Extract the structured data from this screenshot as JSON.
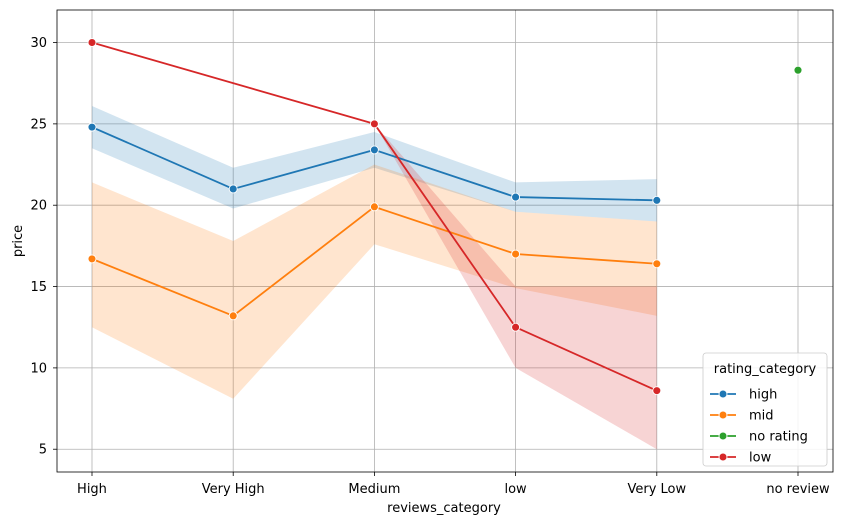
{
  "chart_data": {
    "type": "line",
    "xlabel": "reviews_category",
    "ylabel": "price",
    "categories": [
      "High",
      "Very High",
      "Medium",
      "low",
      "Very Low",
      "no review"
    ],
    "y_ticks": [
      5,
      10,
      15,
      20,
      25,
      30
    ],
    "ylim": [
      3.6,
      32
    ],
    "grid": true,
    "legend": {
      "title": "rating_category",
      "placement": "lower-right"
    },
    "series": [
      {
        "name": "high",
        "color": "#1f77b4",
        "values": [
          24.8,
          21.0,
          23.4,
          20.5,
          20.3,
          null
        ],
        "ci_low": [
          23.5,
          19.8,
          22.3,
          19.6,
          19.0,
          null
        ],
        "ci_high": [
          26.1,
          22.3,
          24.5,
          21.4,
          21.6,
          null
        ]
      },
      {
        "name": "mid",
        "color": "#ff7f0e",
        "values": [
          16.7,
          13.2,
          19.9,
          17.0,
          16.4,
          null
        ],
        "ci_low": [
          12.5,
          8.1,
          17.6,
          14.9,
          13.2,
          null
        ],
        "ci_high": [
          21.4,
          17.8,
          22.5,
          19.6,
          19.0,
          null
        ]
      },
      {
        "name": "no rating",
        "color": "#2ca02c",
        "values": [
          null,
          null,
          null,
          null,
          null,
          28.3
        ],
        "ci_low": [
          null,
          null,
          null,
          null,
          null,
          null
        ],
        "ci_high": [
          null,
          null,
          null,
          null,
          null,
          null
        ]
      },
      {
        "name": "low",
        "color": "#d62728",
        "values": [
          30.0,
          null,
          25.0,
          12.5,
          8.6,
          null
        ],
        "ci_low": [
          null,
          null,
          25.0,
          10.0,
          5.0,
          null
        ],
        "ci_high": [
          null,
          null,
          25.0,
          15.0,
          15.0,
          null
        ]
      }
    ]
  }
}
